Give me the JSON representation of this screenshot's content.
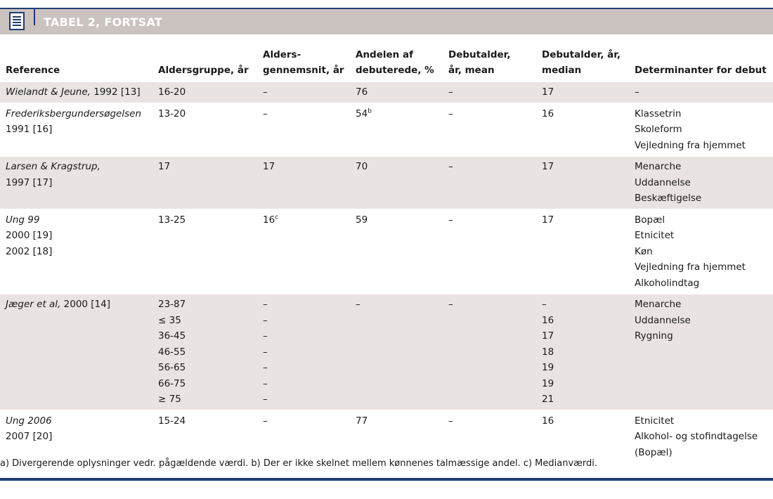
{
  "header": {
    "title": "TABEL 2, FORTSAT",
    "icon": "document-icon"
  },
  "columns": [
    [
      "Reference"
    ],
    [
      "Aldersgruppe, år"
    ],
    [
      "Alders-",
      "gennemsnit, år"
    ],
    [
      "Andelen af",
      "debuterede, %"
    ],
    [
      "Debutalder,",
      "år, mean"
    ],
    [
      "Debutalder, år,",
      "median"
    ],
    [
      "Determinanter for debut"
    ]
  ],
  "rows": [
    {
      "ref": [
        {
          "it": "Wielandt & Jeune,",
          "tx": " 1992 [13]"
        }
      ],
      "age_group": [
        "16-20"
      ],
      "avg_age": [
        "–"
      ],
      "share": [
        "76"
      ],
      "mean": [
        "–"
      ],
      "median": [
        "17"
      ],
      "determinants": [
        "–"
      ]
    },
    {
      "ref": [
        {
          "it": "Frederiksbergundersøgelsen",
          "tx": ""
        },
        {
          "it": "",
          "tx": "1991 [16]"
        }
      ],
      "age_group": [
        "13-20"
      ],
      "avg_age": [
        "–"
      ],
      "share": [
        "54"
      ],
      "share_sup": "b",
      "mean": [
        "–"
      ],
      "median": [
        "16"
      ],
      "determinants": [
        "Klassetrin",
        "Skoleform",
        "Vejledning fra hjemmet"
      ]
    },
    {
      "ref": [
        {
          "it": "Larsen & Kragstrup,",
          "tx": ""
        },
        {
          "it": "",
          "tx": "1997 [17]"
        }
      ],
      "age_group": [
        "17"
      ],
      "avg_age": [
        "17"
      ],
      "share": [
        "70"
      ],
      "mean": [
        "–"
      ],
      "median": [
        "17"
      ],
      "determinants": [
        "Menarche",
        "Uddannelse",
        "Beskæftigelse"
      ]
    },
    {
      "ref": [
        {
          "it": "Ung 99",
          "tx": ""
        },
        {
          "it": "",
          "tx": "2000 [19]"
        },
        {
          "it": "",
          "tx": "2002 [18]"
        }
      ],
      "age_group": [
        "13-25"
      ],
      "avg_age": [
        "16"
      ],
      "avg_sup": "c",
      "share": [
        "59"
      ],
      "mean": [
        "–"
      ],
      "median": [
        "17"
      ],
      "determinants": [
        "Bopæl",
        "Etnicitet",
        "Køn",
        "Vejledning fra hjemmet",
        "Alkoholindtag"
      ]
    },
    {
      "ref": [
        {
          "it": "Jæger et al,",
          "tx": " 2000 [14]"
        }
      ],
      "age_group": [
        "23-87",
        "≤ 35",
        "36-45",
        "46-55",
        "56-65",
        "66-75",
        "≥ 75"
      ],
      "avg_age": [
        "–",
        "–",
        "–",
        "–",
        "–",
        "–",
        "–"
      ],
      "share": [
        "–"
      ],
      "mean": [
        "–"
      ],
      "median": [
        "–",
        "16",
        "17",
        "18",
        "19",
        "19",
        "21"
      ],
      "determinants": [
        "Menarche",
        "Uddannelse",
        "Rygning"
      ]
    },
    {
      "ref": [
        {
          "it": "Ung 2006",
          "tx": ""
        },
        {
          "it": "",
          "tx": "2007 [20]"
        }
      ],
      "age_group": [
        "15-24"
      ],
      "avg_age": [
        "–"
      ],
      "share": [
        "77"
      ],
      "mean": [
        "–"
      ],
      "median": [
        "16"
      ],
      "determinants": [
        "Etnicitet",
        "Alkohol- og stofindtagelse",
        "(Bopæl)"
      ]
    }
  ],
  "footnote": "a) Divergerende oplysninger vedr. pågældende værdi. b) Der er ikke skelnet mellem kønnenes talmæssige andel. c) Medianværdi.",
  "colors": {
    "rule": "#1f3c73",
    "band": "#cbc3c0",
    "shade": "#e9e4e2"
  }
}
